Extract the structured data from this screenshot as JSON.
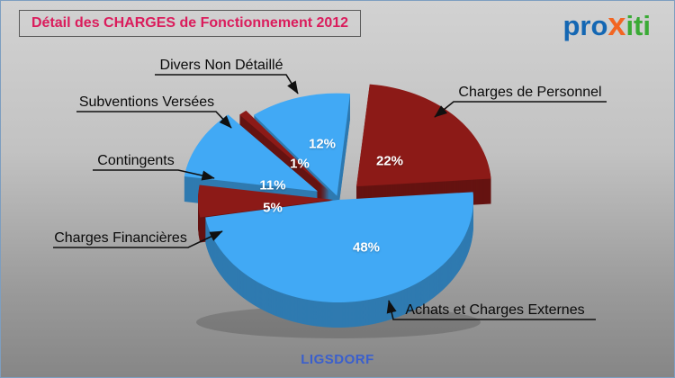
{
  "header": {
    "title": "Détail des CHARGES de Fonctionnement 2012",
    "logo": {
      "part1": "pro",
      "part2": "x",
      "part3": "iti"
    }
  },
  "footer": {
    "municipality": "LIGSDORF"
  },
  "colors": {
    "title_text": "#DA1C5C",
    "footer_text": "#3A5FCD",
    "logo_blue": "#1467B3",
    "logo_orange": "#F26522",
    "logo_green": "#3AAA35",
    "slice_blue": "#41A9F5",
    "slice_dark_red": "#8C1A17",
    "callout_line": "#101010"
  },
  "chart_data": {
    "type": "pie",
    "title": "Détail des CHARGES de Fonctionnement 2012",
    "subtitle": "LIGSDORF",
    "unit": "percent",
    "direction": "clockwise",
    "start_angle_deg": -38,
    "legend_position": "callouts",
    "slices": [
      {
        "label": "Divers Non Détaillé",
        "value": 12,
        "pct_label": "12%",
        "color": "#41A9F5"
      },
      {
        "label": "Charges de Personnel",
        "value": 22,
        "pct_label": "22%",
        "color": "#8C1A17"
      },
      {
        "label": "Achats et Charges Externes",
        "value": 48,
        "pct_label": "48%",
        "color": "#41A9F5"
      },
      {
        "label": "Charges Financières",
        "value": 5,
        "pct_label": "5%",
        "color": "#8C1A17"
      },
      {
        "label": "Contingents",
        "value": 11,
        "pct_label": "11%",
        "color": "#41A9F5"
      },
      {
        "label": "Subventions Versées",
        "value": 1,
        "pct_label": "1%",
        "color": "#8C1A17"
      }
    ]
  }
}
